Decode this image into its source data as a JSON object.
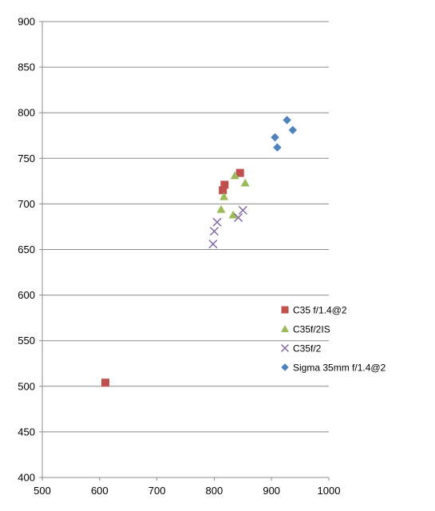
{
  "chart_data": {
    "type": "scatter",
    "title": "",
    "xlabel": "",
    "ylabel": "",
    "xlim": [
      500,
      1000
    ],
    "ylim": [
      400,
      900
    ],
    "xticks": [
      500,
      600,
      700,
      800,
      900,
      1000
    ],
    "yticks": [
      400,
      450,
      500,
      550,
      600,
      650,
      700,
      750,
      800,
      850,
      900
    ],
    "grid": "horizontal",
    "legend_position": "right",
    "series": [
      {
        "name": "C35 f/1.4@2",
        "marker": "square",
        "color": "#c0504d",
        "points": [
          [
            610,
            504
          ],
          [
            815,
            715
          ],
          [
            818,
            721
          ],
          [
            845,
            734
          ]
        ]
      },
      {
        "name": "C35f/2IS",
        "marker": "triangle",
        "color": "#9bbb59",
        "points": [
          [
            812,
            694
          ],
          [
            817,
            708
          ],
          [
            833,
            688
          ],
          [
            836,
            731
          ],
          [
            854,
            723
          ]
        ]
      },
      {
        "name": "C35f/2",
        "marker": "x",
        "color": "#8064a2",
        "points": [
          [
            798,
            656
          ],
          [
            800,
            670
          ],
          [
            805,
            680
          ],
          [
            842,
            685
          ],
          [
            850,
            693
          ]
        ]
      },
      {
        "name": "Sigma 35mm f/1.4@2",
        "marker": "diamond",
        "color": "#4f81bd",
        "points": [
          [
            906,
            773
          ],
          [
            910,
            762
          ],
          [
            927,
            792
          ],
          [
            937,
            781
          ]
        ]
      }
    ]
  }
}
